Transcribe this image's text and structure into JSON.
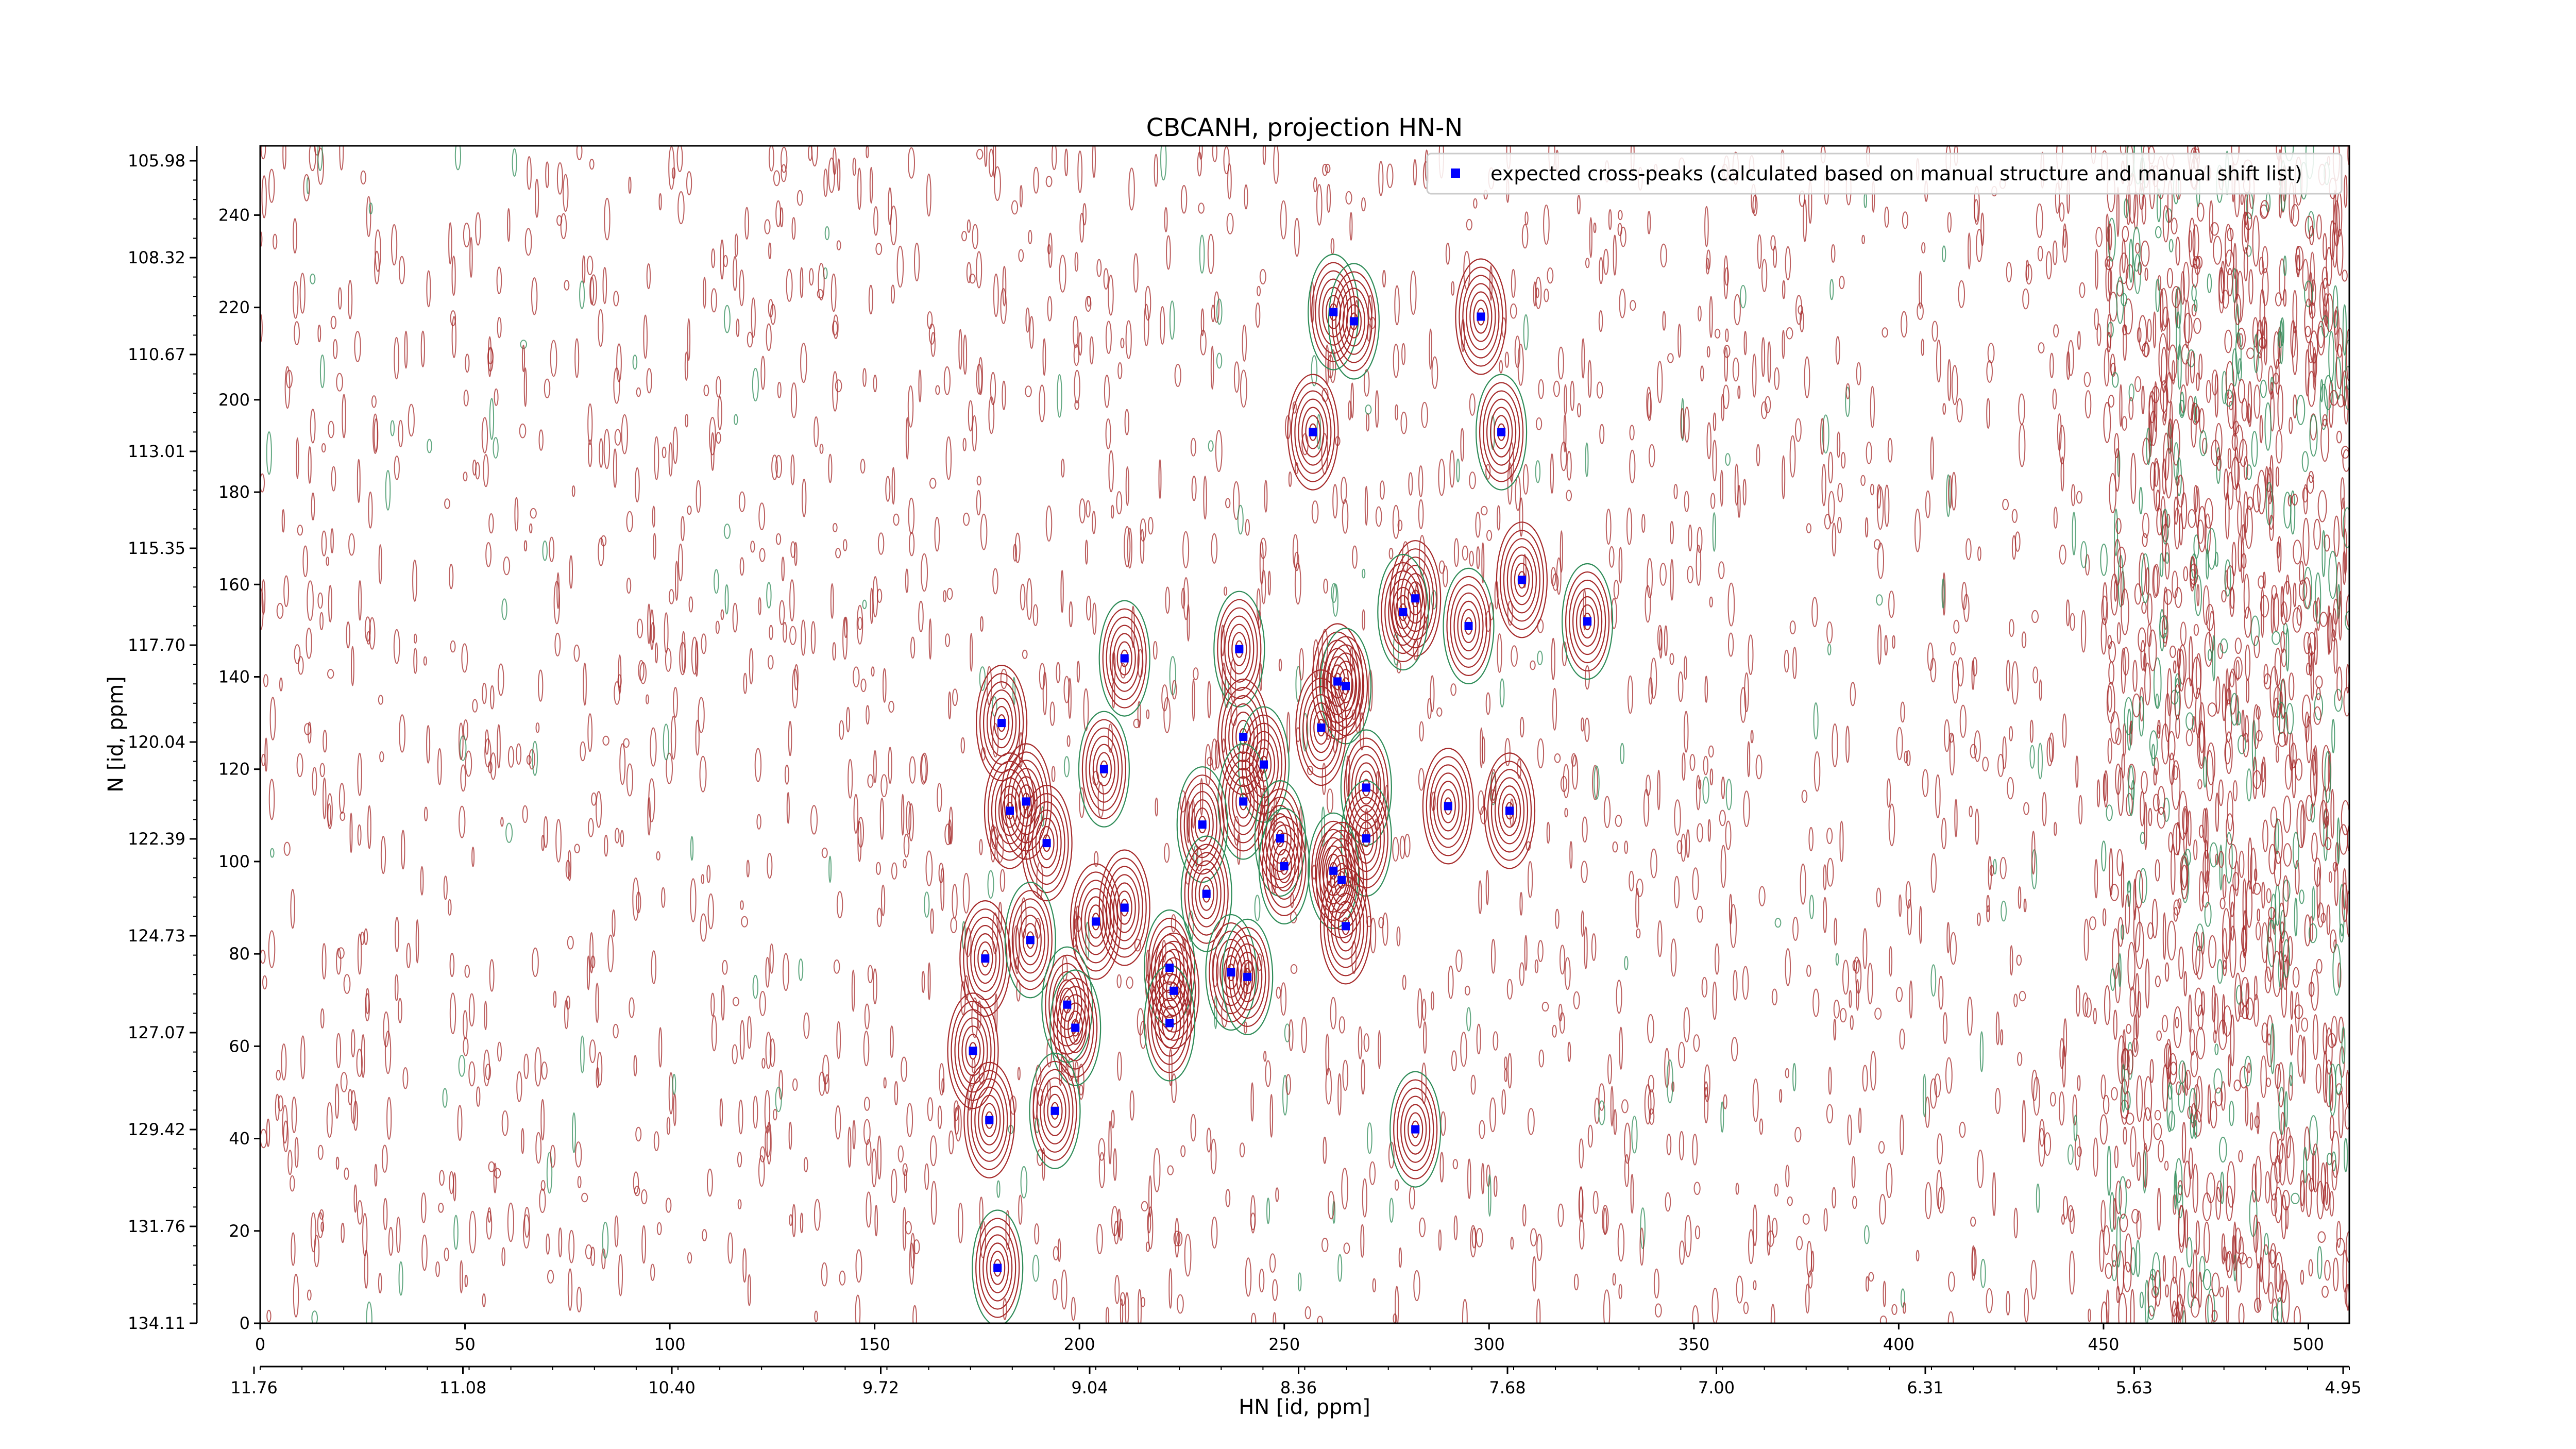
{
  "chart_data": {
    "type": "scatter",
    "title": "CBCANH, projection HN-N",
    "xlabel": "HN [id, ppm]",
    "ylabel": "N [id, ppm]",
    "x_index_ticks": [
      0,
      50,
      100,
      150,
      200,
      250,
      300,
      350,
      400,
      450,
      500
    ],
    "xlim": [
      0,
      510
    ],
    "hn_ppm_ticks": [
      "11.76",
      "11.08",
      "10.40",
      "9.72",
      "9.04",
      "8.36",
      "7.68",
      "7.00",
      "6.31",
      "5.63",
      "4.95"
    ],
    "y_index_ticks": [
      0,
      20,
      40,
      60,
      80,
      100,
      120,
      140,
      160,
      180,
      200,
      220,
      240
    ],
    "ylim": [
      0,
      255
    ],
    "n_ppm_ticks": [
      "134.11",
      "131.76",
      "129.42",
      "127.07",
      "124.73",
      "122.39",
      "120.04",
      "117.70",
      "115.35",
      "113.01",
      "110.67",
      "108.32",
      "105.98"
    ],
    "legend": {
      "label": "expected cross-peaks (calculated based on manual structure and manual shift list)",
      "position": "top-right",
      "marker_color": "#0000ff"
    },
    "contour_colors": {
      "positive": "#a52a2a",
      "negative": "#2e8b57"
    },
    "series": [
      {
        "name": "expected cross-peaks (calculated based on manual structure and manual shift list)",
        "points": [
          [
            262,
            219
          ],
          [
            267,
            217
          ],
          [
            298,
            218
          ],
          [
            257,
            193
          ],
          [
            303,
            193
          ],
          [
            282,
            157
          ],
          [
            279,
            154
          ],
          [
            295,
            151
          ],
          [
            308,
            161
          ],
          [
            324,
            152
          ],
          [
            211,
            144
          ],
          [
            239,
            146
          ],
          [
            263,
            139
          ],
          [
            265,
            138
          ],
          [
            181,
            130
          ],
          [
            240,
            127
          ],
          [
            259,
            129
          ],
          [
            206,
            120
          ],
          [
            245,
            121
          ],
          [
            183,
            111
          ],
          [
            187,
            113
          ],
          [
            192,
            104
          ],
          [
            270,
            116
          ],
          [
            240,
            113
          ],
          [
            230,
            108
          ],
          [
            249,
            105
          ],
          [
            250,
            99
          ],
          [
            270,
            105
          ],
          [
            290,
            112
          ],
          [
            305,
            111
          ],
          [
            231,
            93
          ],
          [
            211,
            90
          ],
          [
            204,
            87
          ],
          [
            262,
            98
          ],
          [
            264,
            96
          ],
          [
            265,
            86
          ],
          [
            177,
            79
          ],
          [
            188,
            83
          ],
          [
            222,
            77
          ],
          [
            223,
            72
          ],
          [
            237,
            76
          ],
          [
            241,
            75
          ],
          [
            197,
            69
          ],
          [
            199,
            64
          ],
          [
            222,
            65
          ],
          [
            174,
            59
          ],
          [
            178,
            44
          ],
          [
            194,
            46
          ],
          [
            282,
            42
          ],
          [
            180,
            12
          ]
        ]
      }
    ]
  }
}
